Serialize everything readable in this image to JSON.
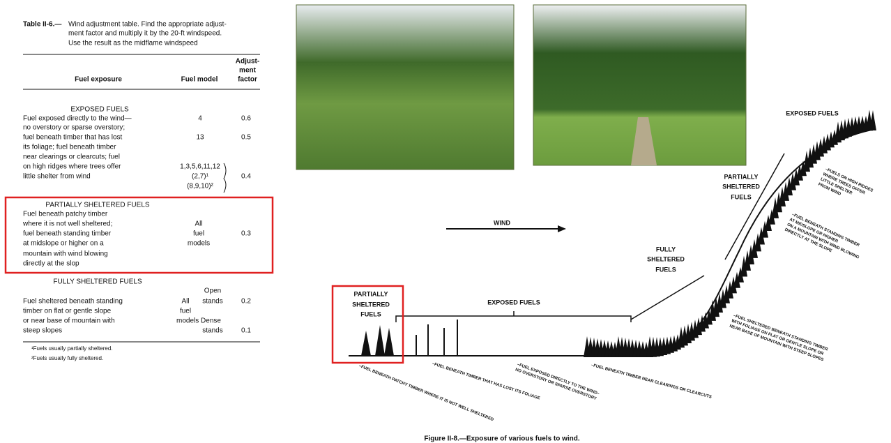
{
  "table": {
    "caption_label": "Table II-6.—",
    "caption_lines": [
      "Wind adjustment table. Find the appropriate adjust-",
      "ment factor and multiply it by the 20-ft windspeed.",
      "Use the result as the midflame windspeed"
    ],
    "headers": {
      "exposure": "Fuel exposure",
      "model": "Fuel model",
      "factor": [
        "Adjust-",
        "ment",
        "factor"
      ]
    },
    "exposed": {
      "heading": "EXPOSED FUELS",
      "lines": [
        "Fuel exposed directly to the wind—",
        "no overstory or sparse overstory;",
        "fuel beneath timber that has lost",
        "its foliage; fuel beneath timber",
        "near clearings or clearcuts; fuel",
        "on high ridges where trees offer",
        "little shelter from wind"
      ],
      "models": [
        "4",
        "13",
        "1,3,5,6,11,12",
        "(2,7)¹",
        "(8,9,10)²"
      ],
      "factors": [
        "0.6",
        "0.5",
        "0.4"
      ]
    },
    "partial": {
      "heading": "PARTIALLY SHELTERED FUELS",
      "lines": [
        "Fuel beneath patchy timber",
        "where it is not well sheltered;",
        "fuel beneath standing timber",
        "at midslope or higher on a",
        "mountain with wind blowing",
        "directly at the slop"
      ],
      "models": [
        "All",
        "fuel",
        "models"
      ],
      "factors": [
        "0.3"
      ]
    },
    "fully": {
      "heading": "FULLY SHELTERED FUELS",
      "lines": [
        "Fuel sheltered beneath standing",
        "timber on flat or gentle slope",
        "or near base of mountain with",
        "steep slopes"
      ],
      "models": [
        "Open",
        "All",
        "stands",
        "fuel",
        "models Dense",
        "stands"
      ],
      "factors": [
        "0.2",
        "0.1"
      ]
    },
    "footnotes": [
      "¹Fuels usually partially sheltered.",
      "²Fuels usually fully sheltered."
    ]
  },
  "figure": {
    "wind": "WIND",
    "exposed_top": "EXPOSED FUELS",
    "partial_right": [
      "PARTIALLY",
      "SHELTERED",
      "FUELS"
    ],
    "fully": [
      "FULLY",
      "SHELTERED",
      "FUELS"
    ],
    "partial_left": [
      "PARTIALLY",
      "SHELTERED",
      "FUELS"
    ],
    "exposed_mid": "EXPOSED FUELS",
    "notes": [
      [
        "–FUEL BENEATH PATCHY TIMBER WHERE IT IS NOT WELL SHELTERED"
      ],
      [
        "–FUEL BENEATH TIMBER THAT HAS LOST ITS FOLIAGE"
      ],
      [
        "–FUEL EXPOSED DIRECTLY TO THE WIND–",
        "NO OVERSTORY OR SPARSE OVERSTORY"
      ],
      [
        "–FUEL BENEATH TIMBER NEAR CLEARINGS OR CLEARCUTS"
      ],
      [
        "–FUEL SHELTERED BENEATH STANDING TIMBER",
        "WITH FOLIAGE ON FLAT OR GENTLE SLOPE OR",
        "NEAR BASE OF MOUNTAIN WITH STEEP SLOPES"
      ],
      [
        "–FUELS ON HIGH RIDGES",
        "WHERE TREES OFFER",
        "LITTLE SHELTER",
        "FROM WIND"
      ],
      [
        "–FUEL BENEATH STANDING TIMBER",
        "AT MIDSLOPE OR HIGHER",
        "ON A MOUNTAIN WITH WIND BLOWING",
        "DIRECTLY AT THE SLOPE"
      ]
    ],
    "caption": "Figure II-8.—Exposure of various fuels to wind."
  }
}
